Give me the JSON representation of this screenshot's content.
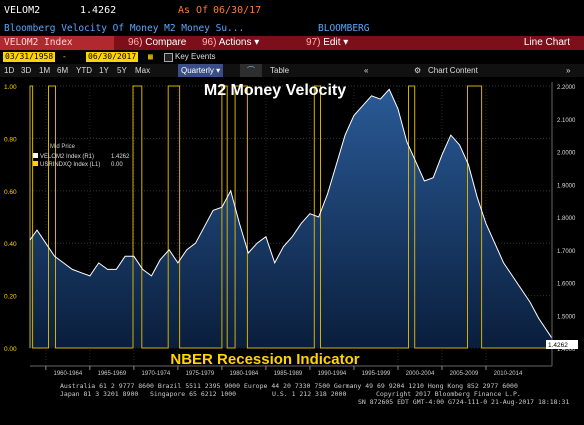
{
  "header": {
    "ticker": "VELOM2",
    "price": "1.4262",
    "asof_label": "As Of",
    "asof_date": "06/30/17",
    "description": "Bloomberg Velocity Of Money M2 Money Su...",
    "source": "BLOOMBERG"
  },
  "toolbar": {
    "security": "VELOM2 Index",
    "compare_num": "96)",
    "compare_label": "Compare",
    "actions_num": "96)",
    "actions_label": "Actions",
    "edit_num": "97)",
    "edit_label": "Edit",
    "chart_type": "Line Chart",
    "accent": "#7d0f1b"
  },
  "dates": {
    "start": "03/31/1958",
    "end": "06/30/2017",
    "key_events_label": "Key Events"
  },
  "periods": {
    "items": [
      "1D",
      "3D",
      "1M",
      "6M",
      "YTD",
      "1Y",
      "5Y",
      "Max"
    ],
    "frequency": "Quarterly",
    "table_label": "Table",
    "chart_content_label": "Chart Content"
  },
  "chart_data": {
    "type": "line",
    "title": "M2 Money Velocity",
    "annotation": "NBER Recession Indicator",
    "legend": {
      "header": "Mid Price",
      "entries": [
        {
          "label": "VELOM2 Index (R1)",
          "value": "1.4262",
          "color": "#ffffff"
        },
        {
          "label": "USRINDXQ Index (L1)",
          "value": "0.00",
          "color": "#ffd400"
        }
      ]
    },
    "left_axis": {
      "min": 0,
      "max": 1.0,
      "ticks": [
        "0.00",
        "0.20",
        "0.40",
        "0.60",
        "0.80",
        "1.00"
      ]
    },
    "right_axis": {
      "min": 1.4,
      "max": 2.2,
      "ticks": [
        "1.4000",
        "1.5000",
        "1.6000",
        "1.7000",
        "1.8000",
        "1.9000",
        "2.0000",
        "2.1000",
        "2.2000"
      ],
      "last_value": "1.4262"
    },
    "x_ticks": [
      "1960-1964",
      "1965-1969",
      "1970-1974",
      "1975-1979",
      "1980-1984",
      "1985-1989",
      "1990-1994",
      "1995-1999",
      "2000-2004",
      "2005-2009",
      "2010-2014"
    ],
    "x_range": [
      1958.2,
      2017.5
    ],
    "series": [
      {
        "name": "VELOM2 Index",
        "color": "#ffffff",
        "x": [
          1958.2,
          1959,
          1960,
          1961,
          1962,
          1963,
          1964,
          1965,
          1966,
          1967,
          1968,
          1969,
          1970,
          1971,
          1972,
          1973,
          1974,
          1975,
          1976,
          1977,
          1978,
          1979,
          1980,
          1981,
          1982,
          1983,
          1984,
          1985,
          1986,
          1987,
          1988,
          1989,
          1990,
          1991,
          1992,
          1993,
          1994,
          1995,
          1996,
          1997,
          1998,
          1999,
          2000,
          2001,
          2002,
          2003,
          2004,
          2005,
          2006,
          2007,
          2008,
          2009,
          2010,
          2011,
          2012,
          2013,
          2014,
          2015,
          2016,
          2017.5
        ],
        "y": [
          1.73,
          1.76,
          1.72,
          1.68,
          1.66,
          1.64,
          1.63,
          1.62,
          1.66,
          1.64,
          1.64,
          1.68,
          1.68,
          1.64,
          1.62,
          1.67,
          1.7,
          1.66,
          1.7,
          1.72,
          1.77,
          1.82,
          1.83,
          1.88,
          1.78,
          1.69,
          1.72,
          1.74,
          1.66,
          1.71,
          1.74,
          1.78,
          1.81,
          1.8,
          1.87,
          1.96,
          2.05,
          2.11,
          2.14,
          2.17,
          2.16,
          2.19,
          2.13,
          2.03,
          1.97,
          1.91,
          1.92,
          1.99,
          2.05,
          2.02,
          1.96,
          1.86,
          1.78,
          1.72,
          1.66,
          1.62,
          1.58,
          1.54,
          1.49,
          1.43
        ]
      },
      {
        "name": "USRINDXQ Index",
        "color": "#ffd400",
        "recessions": [
          [
            1958.2,
            1958.5
          ],
          [
            1960.3,
            1961.1
          ],
          [
            1969.9,
            1970.9
          ],
          [
            1973.9,
            1975.2
          ],
          [
            1980.0,
            1980.6
          ],
          [
            1981.5,
            1982.9
          ],
          [
            1990.5,
            1991.2
          ],
          [
            2001.2,
            2001.9
          ],
          [
            2007.9,
            2009.5
          ]
        ]
      }
    ]
  },
  "footer": {
    "line1": "Australia 61 2 9777 8600 Brazil 5511 2395 9000 Europe 44 20 7330 7500 Germany 49 69 9204 1210 Hong Kong 852 2977 6000",
    "line2a": "Japan 81 3 3201 8900",
    "line2b": "Singapore 65 6212 1000",
    "line2c": "U.S. 1 212 318 2000",
    "line2d": "Copyright 2017 Bloomberg Finance L.P.",
    "line3": "SN 872605 EDT  GMT-4:00 G724-111-0 21-Aug-2017 18:18:31"
  }
}
